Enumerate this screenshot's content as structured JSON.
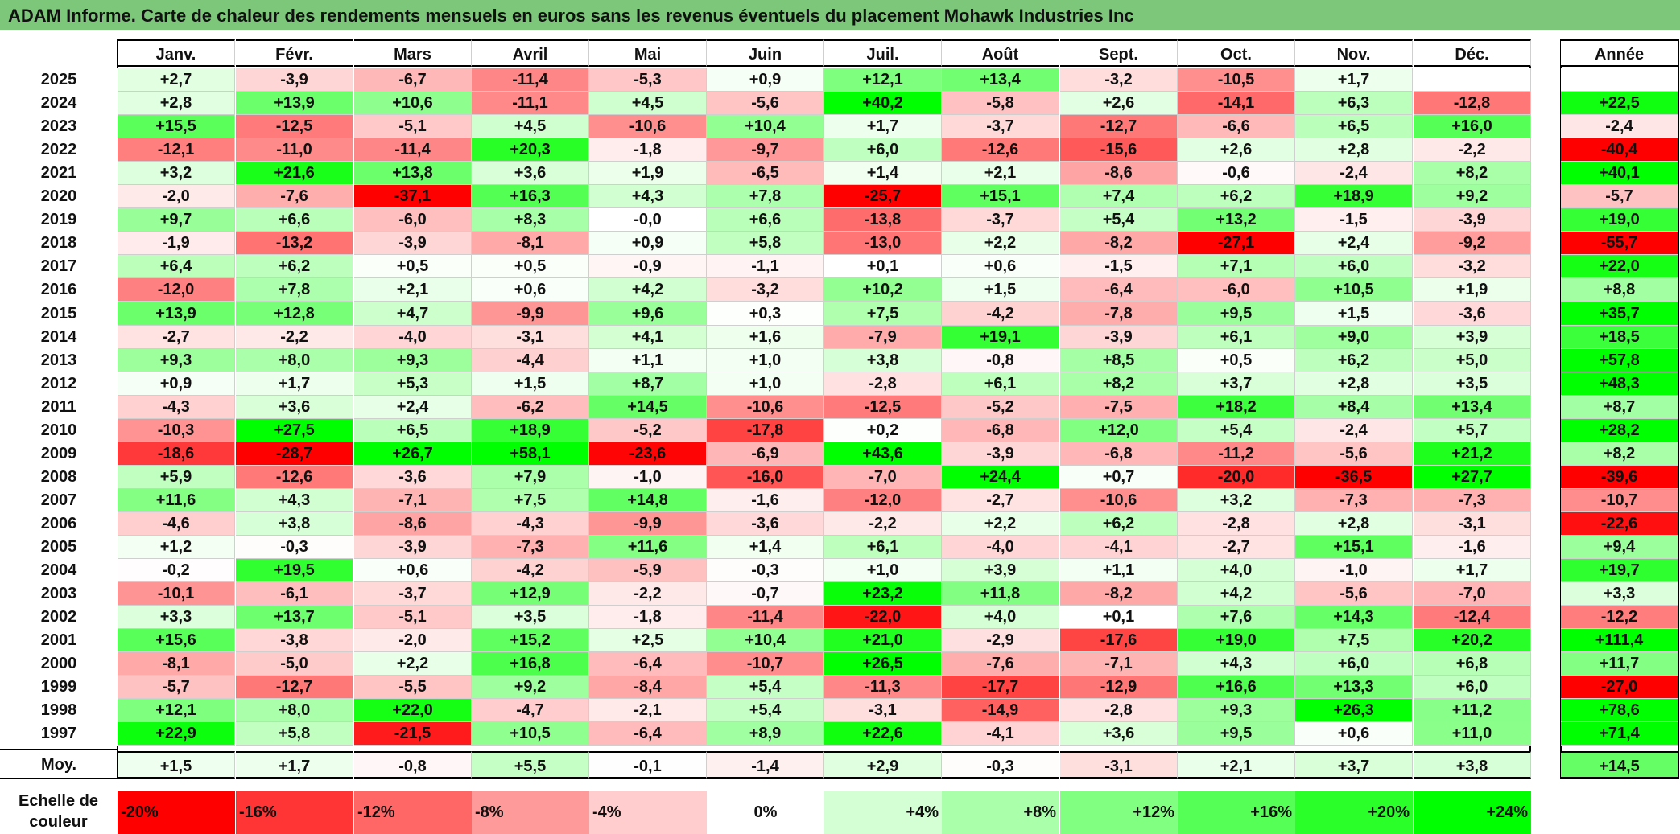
{
  "title": "ADAM Informe. Carte de chaleur des rendements mensuels en euros sans les revenus éventuels du placement Mohawk Industries Inc",
  "chart_data": {
    "type": "heatmap",
    "months": [
      "Janv.",
      "Févr.",
      "Mars",
      "Avril",
      "Mai",
      "Juin",
      "Juil.",
      "Août",
      "Sept.",
      "Oct.",
      "Nov.",
      "Déc."
    ],
    "year_header": "Année",
    "rows": [
      {
        "year": "2025",
        "m": [
          "+2,7",
          "-3,9",
          "-6,7",
          "-11,4",
          "-5,3",
          "+0,9",
          "+12,1",
          "+13,4",
          "-3,2",
          "-10,5",
          "+1,7",
          ""
        ],
        "y": ""
      },
      {
        "year": "2024",
        "m": [
          "+2,8",
          "+13,9",
          "+10,6",
          "-11,1",
          "+4,5",
          "-5,6",
          "+40,2",
          "-5,8",
          "+2,6",
          "-14,1",
          "+6,3",
          "-12,8"
        ],
        "y": "+22,5"
      },
      {
        "year": "2023",
        "m": [
          "+15,5",
          "-12,5",
          "-5,1",
          "+4,5",
          "-10,6",
          "+10,4",
          "+1,7",
          "-3,7",
          "-12,7",
          "-6,6",
          "+6,5",
          "+16,0"
        ],
        "y": "-2,4"
      },
      {
        "year": "2022",
        "m": [
          "-12,1",
          "-11,0",
          "-11,4",
          "+20,3",
          "-1,8",
          "-9,7",
          "+6,0",
          "-12,6",
          "-15,6",
          "+2,6",
          "+2,8",
          "-2,2"
        ],
        "y": "-40,4"
      },
      {
        "year": "2021",
        "m": [
          "+3,2",
          "+21,6",
          "+13,8",
          "+3,6",
          "+1,9",
          "-6,5",
          "+1,4",
          "+2,1",
          "-8,6",
          "-0,6",
          "-2,4",
          "+8,2"
        ],
        "y": "+40,1"
      },
      {
        "year": "2020",
        "m": [
          "-2,0",
          "-7,6",
          "-37,1",
          "+16,3",
          "+4,3",
          "+7,8",
          "-25,7",
          "+15,1",
          "+7,4",
          "+6,2",
          "+18,9",
          "+9,2"
        ],
        "y": "-5,7"
      },
      {
        "year": "2019",
        "m": [
          "+9,7",
          "+6,6",
          "-6,0",
          "+8,3",
          "-0,0",
          "+6,6",
          "-13,8",
          "-3,7",
          "+5,4",
          "+13,2",
          "-1,5",
          "-3,9"
        ],
        "y": "+19,0"
      },
      {
        "year": "2018",
        "m": [
          "-1,9",
          "-13,2",
          "-3,9",
          "-8,1",
          "+0,9",
          "+5,8",
          "-13,0",
          "+2,2",
          "-8,2",
          "-27,1",
          "+2,4",
          "-9,2"
        ],
        "y": "-55,7"
      },
      {
        "year": "2017",
        "m": [
          "+6,4",
          "+6,2",
          "+0,5",
          "+0,5",
          "-0,9",
          "-1,1",
          "+0,1",
          "+0,6",
          "-1,5",
          "+7,1",
          "+6,0",
          "-3,2"
        ],
        "y": "+22,0"
      },
      {
        "year": "2016",
        "m": [
          "-12,0",
          "+7,8",
          "+2,1",
          "+0,6",
          "+4,2",
          "-3,2",
          "+10,2",
          "+1,5",
          "-6,4",
          "-6,0",
          "+10,5",
          "+1,9"
        ],
        "y": "+8,8"
      },
      {
        "year": "2015",
        "m": [
          "+13,9",
          "+12,8",
          "+4,7",
          "-9,9",
          "+9,6",
          "+0,3",
          "+7,5",
          "-4,2",
          "-7,8",
          "+9,5",
          "+1,5",
          "-3,6"
        ],
        "y": "+35,7"
      },
      {
        "year": "2014",
        "m": [
          "-2,7",
          "-2,2",
          "-4,0",
          "-3,1",
          "+4,1",
          "+1,6",
          "-7,9",
          "+19,1",
          "-3,9",
          "+6,1",
          "+9,0",
          "+3,9"
        ],
        "y": "+18,5"
      },
      {
        "year": "2013",
        "m": [
          "+9,3",
          "+8,0",
          "+9,3",
          "-4,4",
          "+1,1",
          "+1,0",
          "+3,8",
          "-0,8",
          "+8,5",
          "+0,5",
          "+6,2",
          "+5,0"
        ],
        "y": "+57,8"
      },
      {
        "year": "2012",
        "m": [
          "+0,9",
          "+1,7",
          "+5,3",
          "+1,5",
          "+8,7",
          "+1,0",
          "-2,8",
          "+6,1",
          "+8,2",
          "+3,7",
          "+2,8",
          "+3,5"
        ],
        "y": "+48,3"
      },
      {
        "year": "2011",
        "m": [
          "-4,3",
          "+3,6",
          "+2,4",
          "-6,2",
          "+14,5",
          "-10,6",
          "-12,5",
          "-5,2",
          "-7,5",
          "+18,2",
          "+8,4",
          "+13,4"
        ],
        "y": "+8,7"
      },
      {
        "year": "2010",
        "m": [
          "-10,3",
          "+27,5",
          "+6,5",
          "+18,9",
          "-5,2",
          "-17,8",
          "+0,2",
          "-6,8",
          "+12,0",
          "+5,4",
          "-2,4",
          "+5,7"
        ],
        "y": "+28,2"
      },
      {
        "year": "2009",
        "m": [
          "-18,6",
          "-28,7",
          "+26,7",
          "+58,1",
          "-23,6",
          "-6,9",
          "+43,6",
          "-3,9",
          "-6,8",
          "-11,2",
          "-5,6",
          "+21,2"
        ],
        "y": "+8,2"
      },
      {
        "year": "2008",
        "m": [
          "+5,9",
          "-12,6",
          "-3,6",
          "+7,9",
          "-1,0",
          "-16,0",
          "-7,0",
          "+24,4",
          "+0,7",
          "-20,0",
          "-36,5",
          "+27,7"
        ],
        "y": "-39,6"
      },
      {
        "year": "2007",
        "m": [
          "+11,6",
          "+4,3",
          "-7,1",
          "+7,5",
          "+14,8",
          "-1,6",
          "-12,0",
          "-2,7",
          "-10,6",
          "+3,2",
          "-7,3",
          "-7,3"
        ],
        "y": "-10,7"
      },
      {
        "year": "2006",
        "m": [
          "-4,6",
          "+3,8",
          "-8,6",
          "-4,3",
          "-9,9",
          "-3,6",
          "-2,2",
          "+2,2",
          "+6,2",
          "-2,8",
          "+2,8",
          "-3,1"
        ],
        "y": "-22,6"
      },
      {
        "year": "2005",
        "m": [
          "+1,2",
          "-0,3",
          "-3,9",
          "-7,3",
          "+11,6",
          "+1,4",
          "+6,1",
          "-4,0",
          "-4,1",
          "-2,7",
          "+15,1",
          "-1,6"
        ],
        "y": "+9,4"
      },
      {
        "year": "2004",
        "m": [
          "-0,2",
          "+19,5",
          "+0,6",
          "-4,2",
          "-5,9",
          "-0,3",
          "+1,0",
          "+3,9",
          "+1,1",
          "+4,0",
          "-1,0",
          "+1,7"
        ],
        "y": "+19,7"
      },
      {
        "year": "2003",
        "m": [
          "-10,1",
          "-6,1",
          "-3,7",
          "+12,9",
          "-2,2",
          "-0,7",
          "+23,2",
          "+11,8",
          "-8,2",
          "+4,2",
          "-5,6",
          "-7,0"
        ],
        "y": "+3,3"
      },
      {
        "year": "2002",
        "m": [
          "+3,3",
          "+13,7",
          "-5,1",
          "+3,5",
          "-1,8",
          "-11,4",
          "-22,0",
          "+4,0",
          "+0,1",
          "+7,6",
          "+14,3",
          "-12,4"
        ],
        "y": "-12,2"
      },
      {
        "year": "2001",
        "m": [
          "+15,6",
          "-3,8",
          "-2,0",
          "+15,2",
          "+2,5",
          "+10,4",
          "+21,0",
          "-2,9",
          "-17,6",
          "+19,0",
          "+7,5",
          "+20,2"
        ],
        "y": "+111,4"
      },
      {
        "year": "2000",
        "m": [
          "-8,1",
          "-5,0",
          "+2,2",
          "+16,8",
          "-6,4",
          "-10,7",
          "+26,5",
          "-7,6",
          "-7,1",
          "+4,3",
          "+6,0",
          "+6,8"
        ],
        "y": "+11,7"
      },
      {
        "year": "1999",
        "m": [
          "-5,7",
          "-12,7",
          "-5,5",
          "+9,2",
          "-8,4",
          "+5,4",
          "-11,3",
          "-17,7",
          "-12,9",
          "+16,6",
          "+13,3",
          "+6,0"
        ],
        "y": "-27,0"
      },
      {
        "year": "1998",
        "m": [
          "+12,1",
          "+8,0",
          "+22,0",
          "-4,7",
          "-2,1",
          "+5,4",
          "-3,1",
          "-14,9",
          "-2,8",
          "+9,3",
          "+26,3",
          "+11,2"
        ],
        "y": "+78,6"
      },
      {
        "year": "1997",
        "m": [
          "+22,9",
          "+5,8",
          "-21,5",
          "+10,5",
          "-6,4",
          "+8,9",
          "+22,6",
          "-4,1",
          "+3,6",
          "+9,5",
          "+0,6",
          "+11,0"
        ],
        "y": "+71,4"
      }
    ],
    "average": {
      "label": "Moy.",
      "m": [
        "+1,5",
        "+1,7",
        "-0,8",
        "+5,5",
        "-0,1",
        "-1,4",
        "+2,9",
        "-0,3",
        "-3,1",
        "+2,1",
        "+3,7",
        "+3,8"
      ],
      "y": "+14,5"
    },
    "scale": {
      "label": "Echelle de couleur",
      "stops": [
        "-20%",
        "-16%",
        "-12%",
        "-8%",
        "-4%",
        "0%",
        "+4%",
        "+8%",
        "+12%",
        "+16%",
        "+20%",
        "+24%"
      ],
      "colors": [
        "#ff0000",
        "#ff3434",
        "#ff6767",
        "#ff9a9a",
        "#ffcdcd",
        "#ffffff",
        "#d4ffd4",
        "#aaffaa",
        "#80ff80",
        "#55ff55",
        "#2aff2a",
        "#00ff00"
      ]
    }
  }
}
